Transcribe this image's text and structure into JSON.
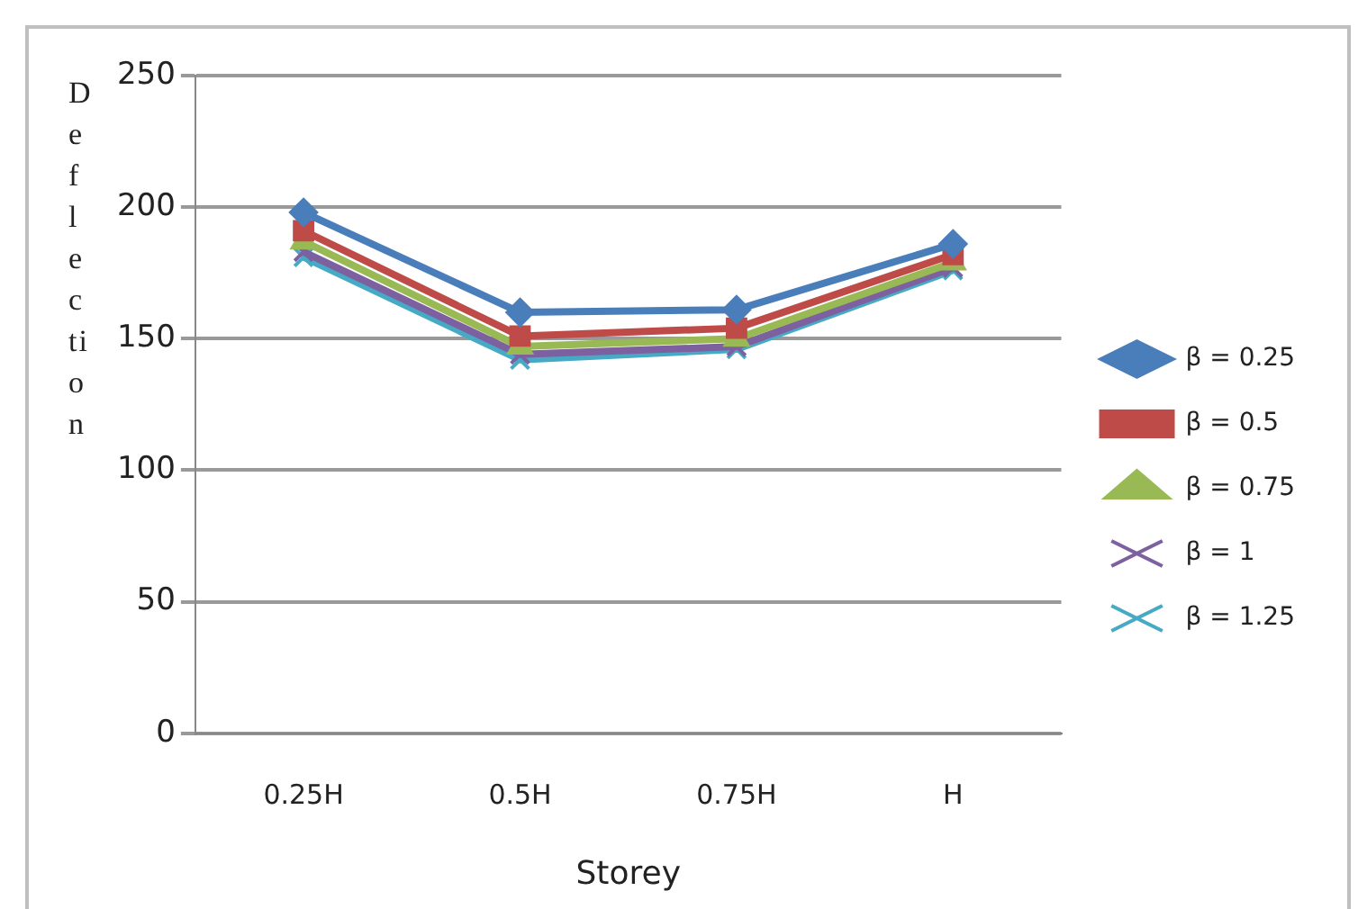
{
  "chart_data": {
    "type": "line",
    "xlabel": "Storey",
    "ylabel": "Deflection",
    "categories": [
      "0.25H",
      "0.5H",
      "0.75H",
      "H"
    ],
    "ylim": [
      0,
      250
    ],
    "yticks": [
      0,
      50,
      100,
      150,
      200,
      250
    ],
    "grid": "y",
    "legend": "right",
    "line_style": "solid",
    "series": [
      {
        "name": "β = 0.25",
        "color": "#4a7ebb",
        "marker": "diamond",
        "values": [
          198,
          160,
          161,
          186
        ]
      },
      {
        "name": "β = 0.5",
        "color": "#be4b48",
        "marker": "square",
        "values": [
          191,
          151,
          154,
          182
        ]
      },
      {
        "name": "β = 0.75",
        "color": "#98b954",
        "marker": "triangle",
        "values": [
          187,
          147,
          150,
          179
        ]
      },
      {
        "name": "β = 1",
        "color": "#7d60a0",
        "marker": "cross",
        "values": [
          183,
          144,
          147,
          177
        ]
      },
      {
        "name": "β = 1.25",
        "color": "#46aac5",
        "marker": "cross",
        "values": [
          181,
          142,
          146,
          176
        ]
      }
    ]
  }
}
